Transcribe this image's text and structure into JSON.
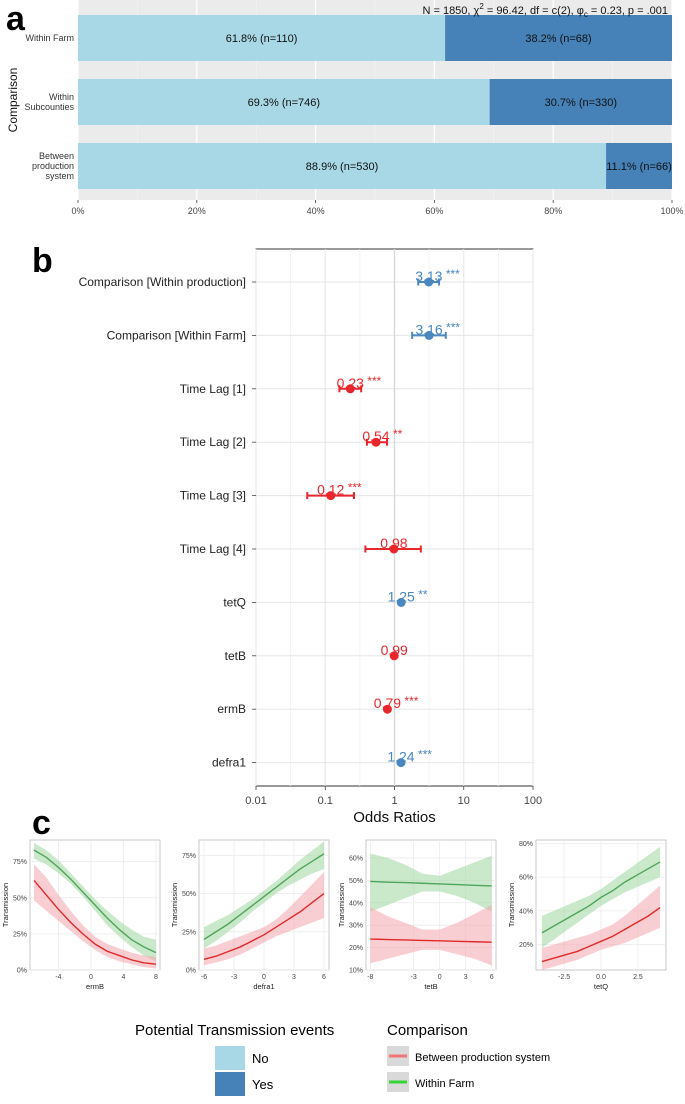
{
  "panel_labels": {
    "a": "a",
    "b": "b",
    "c": "c"
  },
  "colors": {
    "no": "#a8d8e6",
    "yes": "#4681b8",
    "bg": "#ebebeb",
    "grid": "#ffffff",
    "red": "#e8262b",
    "blue": "#4a86c0",
    "ci_green": "#9fd69f",
    "ci_red": "#f2a6ad",
    "line_green": "#4fa65a",
    "line_red": "#e02a2a"
  },
  "chart_data": [
    {
      "id": "a",
      "type": "bar",
      "stacked": true,
      "orientation": "horizontal",
      "subtitle_parts": [
        "N = 1850,  ",
        "χ",
        "2",
        " = 96.42,  df = c(2),  ",
        "φ",
        "c",
        " = 0.23,  p = .001"
      ],
      "ylabel": "Comparison",
      "categories": [
        [
          "Within Farm"
        ],
        [
          "Within",
          "Subcounties"
        ],
        [
          "Between",
          "production",
          "system"
        ]
      ],
      "series": [
        {
          "name": "No",
          "values": [
            61.8,
            69.3,
            88.9
          ],
          "labels": [
            "61.8% (n=110)",
            "69.3% (n=746)",
            "88.9% (n=530)"
          ]
        },
        {
          "name": "Yes",
          "values": [
            38.2,
            30.7,
            11.1
          ],
          "labels": [
            "38.2% (n=68)",
            "30.7% (n=330)",
            "11.1% (n=66)"
          ]
        }
      ],
      "xticks": [
        "0%",
        "20%",
        "40%",
        "60%",
        "80%",
        "100%"
      ],
      "xlim": [
        0,
        100
      ]
    },
    {
      "id": "b",
      "type": "scatter",
      "subtype": "forest",
      "xlabel": "Odds Ratios",
      "xscale": "log",
      "xlim": [
        0.01,
        100
      ],
      "xticks": [
        "0.01",
        "0.1",
        "1",
        "10",
        "100"
      ],
      "terms": [
        {
          "term": "Comparison [Within production]",
          "or": 3.13,
          "low": 2.2,
          "high": 4.4,
          "label": "3.13",
          "stars": "***",
          "dir": "pos"
        },
        {
          "term": "Comparison [Within Farm]",
          "or": 3.16,
          "low": 1.8,
          "high": 5.5,
          "label": "3.16",
          "stars": "***",
          "dir": "pos"
        },
        {
          "term": "Time Lag [1]",
          "or": 0.23,
          "low": 0.16,
          "high": 0.33,
          "label": "0.23",
          "stars": "***",
          "dir": "neg"
        },
        {
          "term": "Time Lag [2]",
          "or": 0.54,
          "low": 0.4,
          "high": 0.78,
          "label": "0.54",
          "stars": "**",
          "dir": "neg"
        },
        {
          "term": "Time Lag [3]",
          "or": 0.12,
          "low": 0.055,
          "high": 0.26,
          "label": "0.12",
          "stars": "***",
          "dir": "neg"
        },
        {
          "term": "Time Lag [4]",
          "or": 0.98,
          "low": 0.38,
          "high": 2.4,
          "label": "0.98",
          "stars": "",
          "dir": "neg"
        },
        {
          "term": "tetQ",
          "or": 1.25,
          "low": 1.2,
          "high": 1.3,
          "label": "1.25",
          "stars": "**",
          "dir": "pos"
        },
        {
          "term": "tetB",
          "or": 0.99,
          "low": 0.97,
          "high": 1.01,
          "label": "0.99",
          "stars": "",
          "dir": "neg"
        },
        {
          "term": "ermB",
          "or": 0.79,
          "low": 0.76,
          "high": 0.82,
          "label": "0.79",
          "stars": "***",
          "dir": "neg"
        },
        {
          "term": "defra1",
          "or": 1.24,
          "low": 1.2,
          "high": 1.28,
          "label": "1.24",
          "stars": "***",
          "dir": "pos"
        }
      ]
    },
    {
      "id": "c1",
      "type": "line",
      "xlabel": "ermB",
      "ylabel": "Transmission",
      "xlim": [
        -7.5,
        8.5
      ],
      "ylim": [
        0,
        0.9
      ],
      "xticks": [
        -4,
        0,
        4,
        8
      ],
      "xticklabels": [
        "-4",
        "0",
        "4",
        "8"
      ],
      "yticks": [
        0,
        0.25,
        0.5,
        0.75
      ],
      "yticklabels": [
        "0%",
        "25%",
        "50%",
        "75%"
      ],
      "x": [
        -7,
        -5.5,
        -4,
        -2.5,
        -1,
        0.5,
        2,
        3.5,
        5,
        6.5,
        8
      ],
      "series": [
        {
          "name": "Within Farm",
          "values": [
            0.83,
            0.78,
            0.71,
            0.63,
            0.54,
            0.45,
            0.36,
            0.28,
            0.21,
            0.16,
            0.12
          ],
          "lower": [
            0.77,
            0.73,
            0.67,
            0.6,
            0.51,
            0.41,
            0.31,
            0.23,
            0.16,
            0.1,
            0.06
          ],
          "upper": [
            0.88,
            0.83,
            0.76,
            0.67,
            0.58,
            0.49,
            0.41,
            0.34,
            0.28,
            0.23,
            0.21
          ]
        },
        {
          "name": "Between production system",
          "values": [
            0.62,
            0.52,
            0.42,
            0.33,
            0.25,
            0.18,
            0.13,
            0.1,
            0.07,
            0.05,
            0.04
          ],
          "lower": [
            0.48,
            0.41,
            0.34,
            0.27,
            0.2,
            0.14,
            0.09,
            0.06,
            0.04,
            0.02,
            0.01
          ],
          "upper": [
            0.73,
            0.64,
            0.52,
            0.41,
            0.31,
            0.23,
            0.18,
            0.15,
            0.12,
            0.1,
            0.09
          ]
        }
      ]
    },
    {
      "id": "c2",
      "type": "line",
      "xlabel": "defra1",
      "ylabel": "Transmission",
      "xlim": [
        -6.5,
        6.5
      ],
      "ylim": [
        0,
        0.85
      ],
      "xticks": [
        -6,
        -3,
        0,
        3,
        6
      ],
      "xticklabels": [
        "-6",
        "-3",
        "0",
        "3",
        "6"
      ],
      "yticks": [
        0,
        0.25,
        0.5,
        0.75
      ],
      "yticklabels": [
        "0%",
        "25%",
        "50%",
        "75%"
      ],
      "x": [
        -6,
        -4.8,
        -3.6,
        -2.4,
        -1.2,
        0,
        1.2,
        2.4,
        3.6,
        4.8,
        6
      ],
      "series": [
        {
          "name": "Within Farm",
          "values": [
            0.2,
            0.25,
            0.3,
            0.36,
            0.42,
            0.48,
            0.54,
            0.6,
            0.66,
            0.71,
            0.76
          ],
          "lower": [
            0.14,
            0.19,
            0.25,
            0.31,
            0.38,
            0.44,
            0.5,
            0.55,
            0.59,
            0.63,
            0.66
          ],
          "upper": [
            0.28,
            0.32,
            0.36,
            0.41,
            0.46,
            0.52,
            0.58,
            0.65,
            0.72,
            0.78,
            0.84
          ]
        },
        {
          "name": "Between production system",
          "values": [
            0.07,
            0.09,
            0.12,
            0.15,
            0.19,
            0.23,
            0.28,
            0.33,
            0.38,
            0.44,
            0.5
          ],
          "lower": [
            0.03,
            0.05,
            0.07,
            0.1,
            0.14,
            0.18,
            0.22,
            0.25,
            0.28,
            0.31,
            0.34
          ],
          "upper": [
            0.14,
            0.16,
            0.19,
            0.22,
            0.25,
            0.28,
            0.33,
            0.4,
            0.48,
            0.56,
            0.64
          ]
        }
      ]
    },
    {
      "id": "c3",
      "type": "line",
      "xlabel": "tetB",
      "ylabel": "Transmission",
      "xlim": [
        -8.5,
        6.5
      ],
      "ylim": [
        0.1,
        0.68
      ],
      "xticks": [
        -8,
        -3,
        0,
        3,
        6
      ],
      "xticklabels": [
        "-8",
        "-3",
        "0",
        "3",
        "6"
      ],
      "yticks": [
        0.1,
        0.2,
        0.3,
        0.4,
        0.5,
        0.6
      ],
      "yticklabels": [
        "10%",
        "20%",
        "30%",
        "40%",
        "50%",
        "60%"
      ],
      "x": [
        -8,
        -6,
        -4,
        -2,
        0,
        2,
        4,
        6
      ],
      "series": [
        {
          "name": "Within Farm",
          "values": [
            0.495,
            0.492,
            0.49,
            0.487,
            0.484,
            0.481,
            0.478,
            0.475
          ],
          "lower": [
            0.36,
            0.39,
            0.42,
            0.45,
            0.45,
            0.43,
            0.4,
            0.36
          ],
          "upper": [
            0.62,
            0.6,
            0.57,
            0.53,
            0.52,
            0.55,
            0.58,
            0.61
          ]
        },
        {
          "name": "Between production system",
          "values": [
            0.238,
            0.236,
            0.234,
            0.232,
            0.23,
            0.228,
            0.226,
            0.224
          ],
          "lower": [
            0.13,
            0.15,
            0.17,
            0.19,
            0.19,
            0.17,
            0.15,
            0.12
          ],
          "upper": [
            0.38,
            0.34,
            0.31,
            0.28,
            0.28,
            0.31,
            0.35,
            0.39
          ]
        }
      ]
    },
    {
      "id": "c4",
      "type": "line",
      "xlabel": "tetQ",
      "ylabel": "Transmission",
      "xlim": [
        -4.4,
        4.4
      ],
      "ylim": [
        0.05,
        0.82
      ],
      "xticks": [
        -2.5,
        0,
        2.5
      ],
      "xticklabels": [
        "-2.5",
        "0.0",
        "2.5"
      ],
      "yticks": [
        0.2,
        0.4,
        0.6,
        0.8
      ],
      "yticklabels": [
        "20%",
        "40%",
        "60%",
        "80%"
      ],
      "x": [
        -4,
        -3.2,
        -2.4,
        -1.6,
        -0.8,
        0,
        0.8,
        1.6,
        2.4,
        3.2,
        4
      ],
      "series": [
        {
          "name": "Within Farm",
          "values": [
            0.27,
            0.31,
            0.35,
            0.39,
            0.43,
            0.48,
            0.52,
            0.57,
            0.61,
            0.65,
            0.69
          ],
          "lower": [
            0.18,
            0.23,
            0.28,
            0.33,
            0.38,
            0.43,
            0.47,
            0.51,
            0.54,
            0.57,
            0.6
          ],
          "upper": [
            0.37,
            0.4,
            0.43,
            0.46,
            0.49,
            0.53,
            0.58,
            0.63,
            0.68,
            0.73,
            0.78
          ]
        },
        {
          "name": "Between production system",
          "values": [
            0.1,
            0.12,
            0.14,
            0.16,
            0.19,
            0.22,
            0.25,
            0.29,
            0.33,
            0.37,
            0.42
          ],
          "lower": [
            0.05,
            0.07,
            0.09,
            0.11,
            0.14,
            0.17,
            0.19,
            0.21,
            0.24,
            0.27,
            0.3
          ],
          "upper": [
            0.18,
            0.2,
            0.22,
            0.24,
            0.26,
            0.29,
            0.32,
            0.37,
            0.43,
            0.49,
            0.55
          ]
        }
      ]
    }
  ],
  "legend": {
    "transmission_title": "Potential Transmission events",
    "transmission_items": [
      "No",
      "Yes"
    ],
    "comparison_title": "Comparison",
    "comparison_items": [
      "Between production system",
      "Within Farm"
    ]
  }
}
